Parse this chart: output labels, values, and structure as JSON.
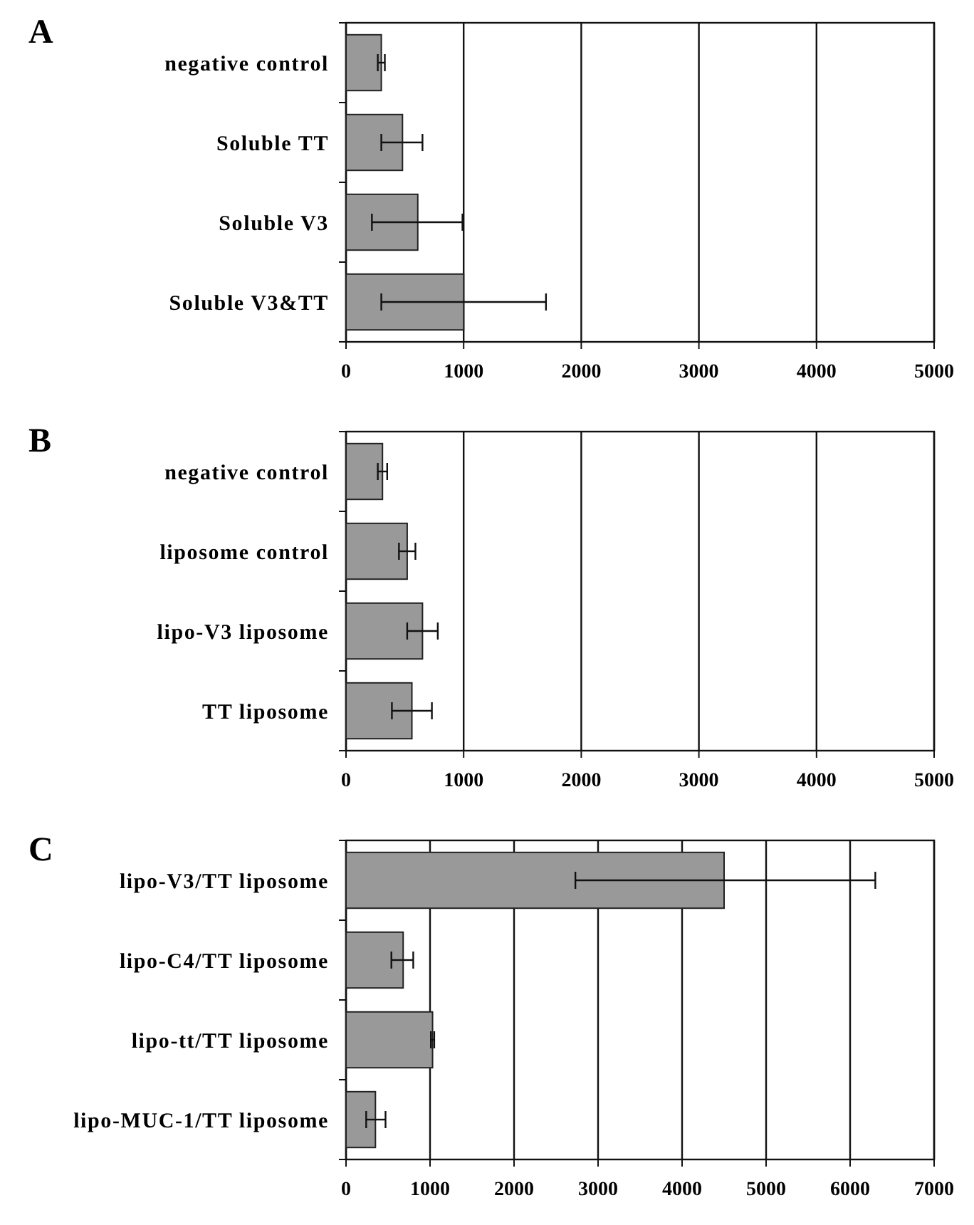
{
  "chart_data": [
    {
      "type": "bar",
      "title": "A",
      "orientation": "horizontal",
      "categories": [
        "negative control",
        "Soluble TT",
        "Soluble V3",
        "Soluble V3&TT"
      ],
      "values": [
        300,
        480,
        610,
        1000
      ],
      "errors": [
        [
          270,
          330
        ],
        [
          300,
          650
        ],
        [
          220,
          990
        ],
        [
          300,
          1700
        ]
      ],
      "color": "#999999",
      "xlim": [
        0,
        5000
      ],
      "xticks": [
        0,
        1000,
        2000,
        3000,
        4000,
        5000
      ],
      "grid": "x"
    },
    {
      "type": "bar",
      "title": "B",
      "orientation": "horizontal",
      "categories": [
        "negative control",
        "liposome control",
        "lipo-V3 liposome",
        "TT liposome"
      ],
      "values": [
        310,
        520,
        650,
        560
      ],
      "errors": [
        [
          270,
          350
        ],
        [
          450,
          590
        ],
        [
          520,
          780
        ],
        [
          390,
          730
        ]
      ],
      "color": "#999999",
      "xlim": [
        0,
        5000
      ],
      "xticks": [
        0,
        1000,
        2000,
        3000,
        4000,
        5000
      ],
      "grid": "x"
    },
    {
      "type": "bar",
      "title": "C",
      "orientation": "horizontal",
      "categories": [
        "lipo-V3/TT liposome",
        "lipo-C4/TT liposome",
        "lipo-tt/TT liposome",
        "lipo-MUC-1/TT liposome"
      ],
      "values": [
        4500,
        680,
        1030,
        350
      ],
      "errors": [
        [
          2730,
          6300
        ],
        [
          540,
          800
        ],
        [
          1010,
          1050
        ],
        [
          240,
          470
        ]
      ],
      "color": "#999999",
      "xlim": [
        0,
        7000
      ],
      "xticks": [
        0,
        1000,
        2000,
        3000,
        4000,
        5000,
        6000,
        7000
      ],
      "grid": "x"
    }
  ]
}
